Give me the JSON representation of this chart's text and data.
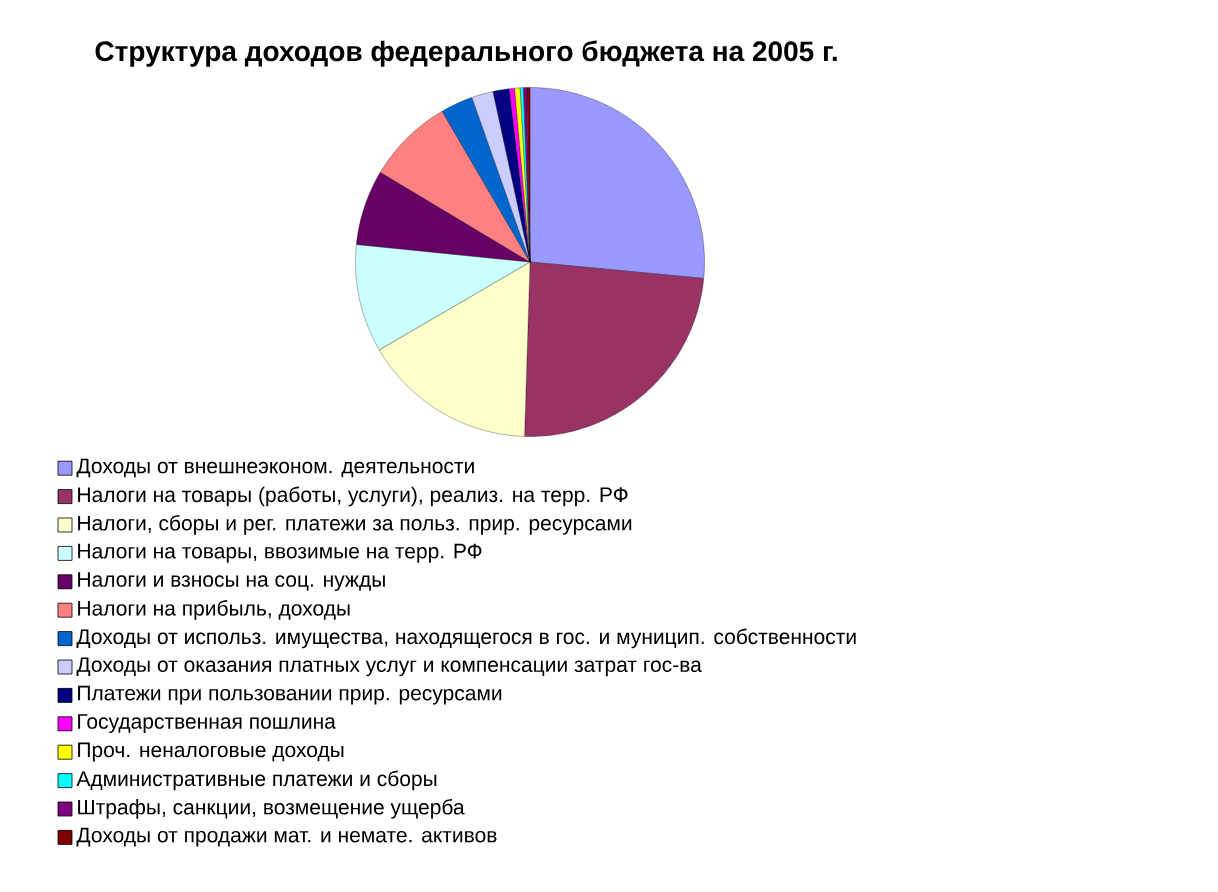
{
  "chart_data": {
    "type": "pie",
    "title": "Структура доходов федерального бюджета на 2005 г.",
    "categories": [
      "Доходы от внешнеэконом. деятельности",
      "Налоги на товары (работы, услуги), реализ. на терр. РФ",
      "Налоги, сборы и рег. платежи за польз. прир. ресурсами",
      "Налоги на товары, ввозимые на терр. РФ",
      "Налоги и взносы на соц. нужды",
      "Налоги на прибыль, доходы",
      "Доходы от использ. имущества, находящегося в гос. и муницип. собственности",
      "Доходы от оказания платных услуг и компенсации затрат гос-ва",
      "Платежи при пользовании прир. ресурсами",
      "Государственная пошлина",
      "Проч. неналоговые доходы",
      "Административные платежи и сборы",
      "Штрафы, санкции, возмещение ущерба",
      "Доходы от продажи мат. и немате. активов"
    ],
    "values": [
      26.5,
      24,
      16.1,
      10,
      7,
      8,
      3,
      2,
      1.5,
      0.5,
      0.5,
      0.3,
      0.3,
      0.3
    ],
    "colors": [
      "#9999ff",
      "#993366",
      "#ffffcc",
      "#ccffff",
      "#660066",
      "#ff8080",
      "#0066cc",
      "#ccccff",
      "#000080",
      "#ff00ff",
      "#ffff00",
      "#00ffff",
      "#800080",
      "#800000"
    ],
    "legend": "bottom"
  }
}
